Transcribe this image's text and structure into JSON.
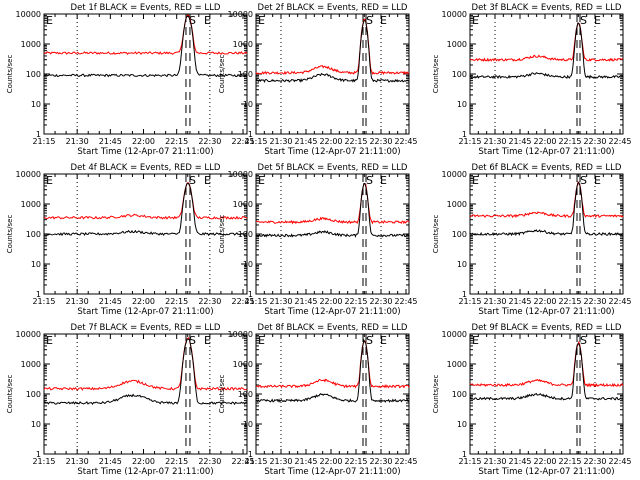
{
  "chart_data": [
    {
      "type": "line",
      "title": "Det 1f BLACK = Events, RED = LLD",
      "xlabel": "Start Time (12-Apr-07 21:11:00)",
      "ylabel": "Counts/sec",
      "xlim": [
        21.25,
        22.78
      ],
      "ylim": [
        1,
        10000
      ],
      "yscale": "log",
      "x_ticks": [
        "21:15",
        "21:30",
        "21:45",
        "22:00",
        "22:15",
        "22:30",
        "22:45"
      ],
      "y_ticks": [
        "1",
        "10",
        "100",
        "1000",
        "10000"
      ],
      "markers": [
        "E",
        "S",
        "E"
      ],
      "series": [
        {
          "name": "LLD",
          "color": "#ff0000",
          "base": 500,
          "bump": 1.0,
          "peak": 9000
        },
        {
          "name": "Events",
          "color": "#000000",
          "base": 90,
          "bump": 1.0,
          "peak": 9000
        }
      ]
    },
    {
      "type": "line",
      "title": "Det 2f BLACK = Events, RED = LLD",
      "xlabel": "Start Time (12-Apr-07 21:11:00)",
      "ylabel": "Counts/sec",
      "xlim": [
        21.25,
        22.78
      ],
      "ylim": [
        1,
        10000
      ],
      "yscale": "log",
      "x_ticks": [
        "21:15",
        "21:30",
        "21:45",
        "22:00",
        "22:15",
        "22:30",
        "22:45"
      ],
      "y_ticks": [
        "1",
        "10",
        "100",
        "1000",
        "10000"
      ],
      "markers": [
        "E",
        "S",
        "E"
      ],
      "series": [
        {
          "name": "LLD",
          "color": "#ff0000",
          "base": 110,
          "bump": 1.6,
          "peak": 7000
        },
        {
          "name": "Events",
          "color": "#000000",
          "base": 60,
          "bump": 1.6,
          "peak": 6500
        }
      ]
    },
    {
      "type": "line",
      "title": "Det 3f BLACK = Events, RED = LLD",
      "xlabel": "Start Time (12-Apr-07 21:11:00)",
      "ylabel": "Counts/sec",
      "xlim": [
        21.25,
        22.78
      ],
      "ylim": [
        1,
        10000
      ],
      "yscale": "log",
      "x_ticks": [
        "21:15",
        "21:30",
        "21:45",
        "22:00",
        "22:15",
        "22:30",
        "22:45"
      ],
      "y_ticks": [
        "1",
        "10",
        "100",
        "1000",
        "10000"
      ],
      "markers": [
        "E",
        "S",
        "E"
      ],
      "series": [
        {
          "name": "LLD",
          "color": "#ff0000",
          "base": 300,
          "bump": 1.3,
          "peak": 5000
        },
        {
          "name": "Events",
          "color": "#000000",
          "base": 80,
          "bump": 1.3,
          "peak": 5000
        }
      ]
    },
    {
      "type": "line",
      "title": "Det 4f BLACK = Events, RED = LLD",
      "xlabel": "Start Time (12-Apr-07 21:11:00)",
      "ylabel": "Counts/sec",
      "xlim": [
        21.25,
        22.78
      ],
      "ylim": [
        1,
        10000
      ],
      "yscale": "log",
      "x_ticks": [
        "21:15",
        "21:30",
        "21:45",
        "22:00",
        "22:15",
        "22:30",
        "22:45"
      ],
      "y_ticks": [
        "1",
        "10",
        "100",
        "1000",
        "10000"
      ],
      "markers": [
        "E",
        "S",
        "E"
      ],
      "series": [
        {
          "name": "LLD",
          "color": "#ff0000",
          "base": 350,
          "bump": 1.2,
          "peak": 5000
        },
        {
          "name": "Events",
          "color": "#000000",
          "base": 100,
          "bump": 1.2,
          "peak": 5000
        }
      ]
    },
    {
      "type": "line",
      "title": "Det 5f BLACK = Events, RED = LLD",
      "xlabel": "Start Time (12-Apr-07 21:11:00)",
      "ylabel": "Counts/sec",
      "xlim": [
        21.25,
        22.78
      ],
      "ylim": [
        1,
        10000
      ],
      "yscale": "log",
      "x_ticks": [
        "21:15",
        "21:30",
        "21:45",
        "22:00",
        "22:15",
        "22:30",
        "22:45"
      ],
      "y_ticks": [
        "1",
        "10",
        "100",
        "1000",
        "10000"
      ],
      "markers": [
        "E",
        "S",
        "E"
      ],
      "series": [
        {
          "name": "LLD",
          "color": "#ff0000",
          "base": 250,
          "bump": 1.3,
          "peak": 5000
        },
        {
          "name": "Events",
          "color": "#000000",
          "base": 90,
          "bump": 1.3,
          "peak": 5000
        }
      ]
    },
    {
      "type": "line",
      "title": "Det 6f BLACK = Events, RED = LLD",
      "xlabel": "Start Time (12-Apr-07 21:11:00)",
      "ylabel": "Counts/sec",
      "xlim": [
        21.25,
        22.78
      ],
      "ylim": [
        1,
        10000
      ],
      "yscale": "log",
      "x_ticks": [
        "21:15",
        "21:30",
        "21:45",
        "22:00",
        "22:15",
        "22:30",
        "22:45"
      ],
      "y_ticks": [
        "1",
        "10",
        "100",
        "1000",
        "10000"
      ],
      "markers": [
        "E",
        "S",
        "E"
      ],
      "series": [
        {
          "name": "LLD",
          "color": "#ff0000",
          "base": 400,
          "bump": 1.3,
          "peak": 5000
        },
        {
          "name": "Events",
          "color": "#000000",
          "base": 100,
          "bump": 1.3,
          "peak": 5000
        }
      ]
    },
    {
      "type": "line",
      "title": "Det 7f BLACK = Events, RED = LLD",
      "xlabel": "Start Time (12-Apr-07 21:11:00)",
      "ylabel": "Counts/sec",
      "xlim": [
        21.25,
        22.78
      ],
      "ylim": [
        1,
        10000
      ],
      "yscale": "log",
      "x_ticks": [
        "21:15",
        "21:30",
        "21:45",
        "22:00",
        "22:15",
        "22:30",
        "22:45"
      ],
      "y_ticks": [
        "1",
        "10",
        "100",
        "1000",
        "10000"
      ],
      "markers": [
        "E",
        "S",
        "E"
      ],
      "series": [
        {
          "name": "LLD",
          "color": "#ff0000",
          "base": 150,
          "bump": 1.8,
          "peak": 7000
        },
        {
          "name": "Events",
          "color": "#000000",
          "base": 50,
          "bump": 1.8,
          "peak": 7000
        }
      ]
    },
    {
      "type": "line",
      "title": "Det 8f BLACK = Events, RED = LLD",
      "xlabel": "Start Time (12-Apr-07 21:11:00)",
      "ylabel": "Counts/sec",
      "xlim": [
        21.25,
        22.78
      ],
      "ylim": [
        1,
        10000
      ],
      "yscale": "log",
      "x_ticks": [
        "21:15",
        "21:30",
        "21:45",
        "22:00",
        "22:15",
        "22:30",
        "22:45"
      ],
      "y_ticks": [
        "1",
        "10",
        "100",
        "1000",
        "10000"
      ],
      "markers": [
        "E",
        "S",
        "E"
      ],
      "series": [
        {
          "name": "LLD",
          "color": "#ff0000",
          "base": 180,
          "bump": 1.6,
          "peak": 6000
        },
        {
          "name": "Events",
          "color": "#000000",
          "base": 60,
          "bump": 1.6,
          "peak": 6000
        }
      ]
    },
    {
      "type": "line",
      "title": "Det 9f BLACK = Events, RED = LLD",
      "xlabel": "Start Time (12-Apr-07 21:11:00)",
      "ylabel": "Counts/sec",
      "xlim": [
        21.25,
        22.78
      ],
      "ylim": [
        1,
        10000
      ],
      "yscale": "log",
      "x_ticks": [
        "21:15",
        "21:30",
        "21:45",
        "22:00",
        "22:15",
        "22:30",
        "22:45"
      ],
      "y_ticks": [
        "1",
        "10",
        "100",
        "1000",
        "10000"
      ],
      "markers": [
        "E",
        "S",
        "E"
      ],
      "series": [
        {
          "name": "LLD",
          "color": "#ff0000",
          "base": 200,
          "bump": 1.4,
          "peak": 5000
        },
        {
          "name": "Events",
          "color": "#000000",
          "base": 70,
          "bump": 1.4,
          "peak": 5000
        }
      ]
    }
  ]
}
